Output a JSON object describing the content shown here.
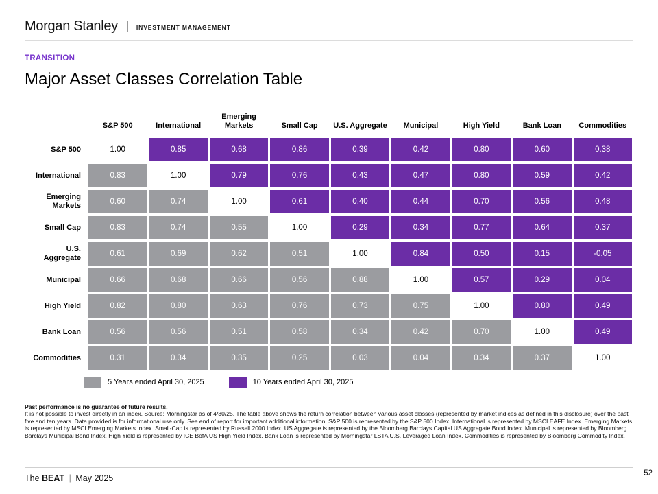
{
  "theme": {
    "accent_purple": "#7733cc",
    "cell_purple": "#6b2da6",
    "cell_gray": "#9b9ca0"
  },
  "header": {
    "brand": "Morgan Stanley",
    "division": "INVESTMENT MANAGEMENT"
  },
  "eyebrow": "TRANSITION",
  "title": "Major Asset Classes Correlation Table",
  "chart_data": {
    "type": "heatmap",
    "title": "Major Asset Classes Correlation Table",
    "categories": [
      "S&P 500",
      "International",
      "Emerging Markets",
      "Small Cap",
      "U.S. Aggregate",
      "Municipal",
      "High Yield",
      "Bank Loan",
      "Commodities"
    ],
    "column_labels": [
      "S&P 500",
      "International",
      "Emerging\nMarkets",
      "Small Cap",
      "U.S. Aggregate",
      "Municipal",
      "High Yield",
      "Bank Loan",
      "Commodities"
    ],
    "row_labels": [
      "S&P 500",
      "International",
      "Emerging\nMarkets",
      "Small Cap",
      "U.S.\nAggregate",
      "Municipal",
      "High Yield",
      "Bank Loan",
      "Commodities"
    ],
    "rows": [
      {
        "label": "S&P 500",
        "values": [
          1.0,
          0.85,
          0.68,
          0.86,
          0.39,
          0.42,
          0.8,
          0.6,
          0.38
        ]
      },
      {
        "label": "International",
        "values": [
          0.83,
          1.0,
          0.79,
          0.76,
          0.43,
          0.47,
          0.8,
          0.59,
          0.42
        ]
      },
      {
        "label": "Emerging Markets",
        "values": [
          0.6,
          0.74,
          1.0,
          0.61,
          0.4,
          0.44,
          0.7,
          0.56,
          0.48
        ]
      },
      {
        "label": "Small Cap",
        "values": [
          0.83,
          0.74,
          0.55,
          1.0,
          0.29,
          0.34,
          0.77,
          0.64,
          0.37
        ]
      },
      {
        "label": "U.S. Aggregate",
        "values": [
          0.61,
          0.69,
          0.62,
          0.51,
          1.0,
          0.84,
          0.5,
          0.15,
          -0.05
        ]
      },
      {
        "label": "Municipal",
        "values": [
          0.66,
          0.68,
          0.66,
          0.56,
          0.88,
          1.0,
          0.57,
          0.29,
          0.04
        ]
      },
      {
        "label": "High Yield",
        "values": [
          0.82,
          0.8,
          0.63,
          0.76,
          0.73,
          0.75,
          1.0,
          0.8,
          0.49
        ]
      },
      {
        "label": "Bank Loan",
        "values": [
          0.56,
          0.56,
          0.51,
          0.58,
          0.34,
          0.42,
          0.7,
          1.0,
          0.49
        ]
      },
      {
        "label": "Commodities",
        "values": [
          0.31,
          0.34,
          0.35,
          0.25,
          0.03,
          0.04,
          0.34,
          0.37,
          1.0
        ]
      }
    ],
    "cell_coloring": {
      "lower_triangle": "5 Years ended April 30, 2025",
      "upper_triangle": "10 Years ended April 30, 2025",
      "diagonal": "1.00 on white"
    },
    "colors": {
      "five_year": "#9b9ca0",
      "ten_year": "#6b2da6",
      "diagonal": "#ffffff"
    }
  },
  "legend": [
    {
      "label": "5 Years ended April 30, 2025",
      "color": "#9b9ca0"
    },
    {
      "label": "10 Years ended April 30, 2025",
      "color": "#6b2da6"
    }
  ],
  "disclosure": {
    "bold_line": "Past performance is no guarantee of future results.",
    "body": "It is not possible to invest directly in an index. Source: Morningstar as of 4/30/25. The table above shows the return correlation between various asset classes (represented by market indices as defined in this disclosure) over the past five and ten years. Data provided is for informational use only. See end of report for important additional information. S&P 500 is represented by the S&P 500 Index. International is represented by MSCI EAFE Index. Emerging Markets is represented by MSCI Emerging Markets Index. Small-Cap is represented by Russell 2000 Index. US Aggregate is represented by the Bloomberg Barclays Capital US Aggregate Bond Index. Municipal is represented by Bloomberg Barclays Municipal Bond Index. High Yield is represented by ICE BofA US High Yield Index. Bank Loan is represented by Morningstar LSTA U.S. Leveraged Loan Index. Commodities is represented by Bloomberg Commodity Index."
  },
  "footer": {
    "prefix": "The",
    "name": "BEAT",
    "separator": "|",
    "issue": "May 2025",
    "page_number": "52"
  }
}
